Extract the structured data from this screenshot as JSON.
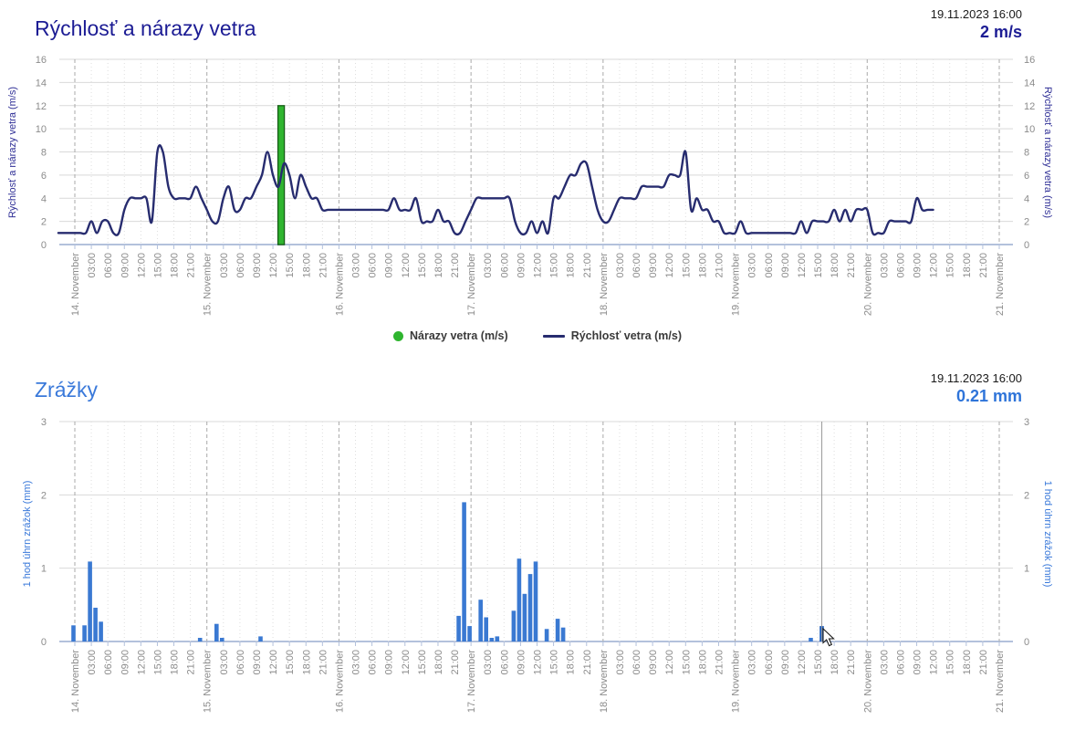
{
  "wind_chart": {
    "title": "Rýchlosť a nárazy vetra",
    "timestamp": "19.11.2023 16:00",
    "current_value": "2 m/s",
    "y_axis_label": "Rýchlosť a nárazy vetra (m/s)",
    "legend_gusts": "Nárazy vetra (m/s)",
    "legend_speed": "Rýchlosť vetra (m/s)"
  },
  "rain_chart": {
    "title": "Zrážky",
    "timestamp": "19.11.2023 16:00",
    "current_value": "0.21 mm",
    "y_axis_label": "1 hod úhrn zrážok (mm)"
  },
  "x_axis": {
    "day_labels": [
      "14. November",
      "15. November",
      "16. November",
      "17. November",
      "18. November",
      "19. November",
      "20. November",
      "21. November"
    ],
    "time_labels": [
      "03:00",
      "06:00",
      "09:00",
      "12:00",
      "15:00",
      "18:00",
      "21:00"
    ]
  },
  "colors": {
    "wind_title": "#1c1c94",
    "wind_line": "#272c6f",
    "gust_fill": "#2fb52f",
    "gust_stroke": "#155c15",
    "rain_title": "#3a79da",
    "rain_bar": "#3a79d2",
    "rain_bar_active": "#1f5ebc",
    "grid": "#d9d9d9",
    "day_grid": "#a9a9a9",
    "minor_grid": "#dedede",
    "baseline": "#b3c1dc",
    "tick_text": "#8b8b8b",
    "crosshair": "#999999"
  },
  "chart_data": [
    {
      "type": "line",
      "title": "Rýchlosť a nárazy vetra",
      "ylabel": "Rýchlosť a nárazy vetra (m/s)",
      "ylim": [
        0,
        16
      ],
      "y_ticks": [
        0,
        2,
        4,
        6,
        8,
        10,
        12,
        14,
        16
      ],
      "x_range": [
        "13.11.2023 21:00",
        "20.11.2023 12:00"
      ],
      "x_interval_hours": 1,
      "grid": true,
      "legend_position": "bottom-center",
      "series": [
        {
          "name": "Rýchlosť vetra (m/s)",
          "type": "line",
          "color": "#272c6f",
          "start_hour_offset": -3,
          "values": [
            1,
            1,
            1,
            1,
            1,
            1,
            2,
            1,
            2,
            2,
            1,
            1,
            3,
            4,
            4,
            4,
            4,
            2,
            8,
            8,
            5,
            4,
            4,
            4,
            4,
            5,
            4,
            3,
            2,
            2,
            4,
            5,
            3,
            3,
            4,
            4,
            5,
            6,
            8,
            6,
            5,
            7,
            6,
            4,
            6,
            5,
            4,
            4,
            3,
            3,
            3,
            3,
            3,
            3,
            3,
            3,
            3,
            3,
            3,
            3,
            3,
            4,
            3,
            3,
            3,
            4,
            2,
            2,
            2,
            3,
            2,
            2,
            1,
            1,
            2,
            3,
            4,
            4,
            4,
            4,
            4,
            4,
            4,
            2,
            1,
            1,
            2,
            1,
            2,
            1,
            4,
            4,
            5,
            6,
            6,
            7,
            7,
            5,
            3,
            2,
            2,
            3,
            4,
            4,
            4,
            4,
            5,
            5,
            5,
            5,
            5,
            6,
            6,
            6,
            8,
            3,
            4,
            3,
            3,
            2,
            2,
            1,
            1,
            1,
            2,
            1,
            1,
            1,
            1,
            1,
            1,
            1,
            1,
            1,
            1,
            2,
            1,
            2,
            2,
            2,
            2,
            3,
            2,
            3,
            2,
            3,
            3,
            3,
            1,
            1,
            1,
            2,
            2,
            2,
            2,
            2,
            4,
            3,
            3,
            3
          ]
        },
        {
          "name": "Nárazy vetra (m/s)",
          "type": "column",
          "color": "#2fb52f",
          "points": [
            {
              "time": "15.11.2023 13:00",
              "hour_offset": 37,
              "value": 12
            }
          ]
        }
      ]
    },
    {
      "type": "bar",
      "title": "Zrážky",
      "ylabel": "1 hod úhrn zrážok (mm)",
      "unit": "mm",
      "ylim": [
        0,
        3
      ],
      "y_ticks": [
        0,
        1,
        2,
        3
      ],
      "grid": true,
      "bars": [
        [
          0,
          0.22
        ],
        [
          2,
          0.22
        ],
        [
          3,
          1.09
        ],
        [
          4,
          0.46
        ],
        [
          5,
          0.27
        ],
        [
          23,
          0.05
        ],
        [
          26,
          0.24
        ],
        [
          27,
          0.05
        ],
        [
          34,
          0.07
        ],
        [
          70,
          0.35
        ],
        [
          71,
          1.9
        ],
        [
          72,
          0.21
        ],
        [
          74,
          0.57
        ],
        [
          75,
          0.33
        ],
        [
          76,
          0.05
        ],
        [
          77,
          0.07
        ],
        [
          80,
          0.42
        ],
        [
          81,
          1.13
        ],
        [
          82,
          0.65
        ],
        [
          83,
          0.92
        ],
        [
          84,
          1.09
        ],
        [
          86,
          0.17
        ],
        [
          88,
          0.31
        ],
        [
          89,
          0.19
        ],
        [
          134,
          0.05
        ],
        [
          136,
          0.21
        ]
      ],
      "active_bar_hour_offset": 136,
      "active_bar_value": 0.21,
      "crosshair_hour_offset": 136
    }
  ]
}
